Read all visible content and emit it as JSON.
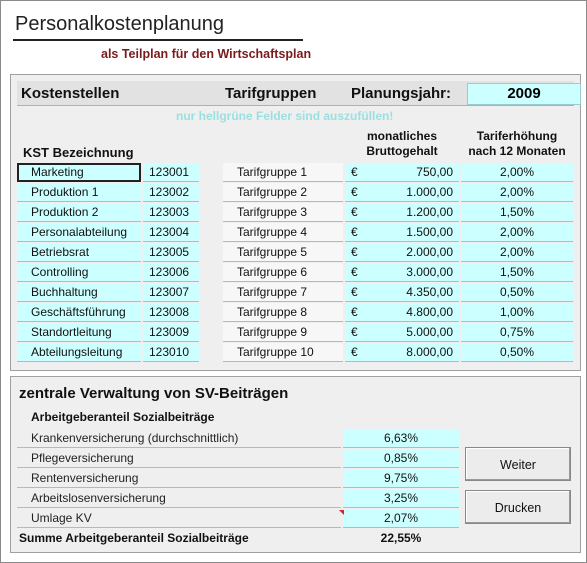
{
  "title": "Personalkostenplanung",
  "subtitle": "als Teilplan für den Wirtschaftsplan",
  "header": {
    "kostenstellen": "Kostenstellen",
    "tarifgruppen": "Tarifgruppen",
    "planungsjahr_label": "Planungsjahr:",
    "planungsjahr_value": "2009"
  },
  "hint": "nur hellgrüne Felder sind auszufüllen!",
  "columns": {
    "kst": "KST Bezeichnung",
    "gehalt_line1": "monatliches",
    "gehalt_line2": "Bruttogehalt",
    "erhoehung_line1": "Tariferhöhung",
    "erhoehung_line2": "nach 12 Monaten"
  },
  "currency_symbol": "€",
  "rows": [
    {
      "kst_name": "Marketing",
      "kst_num": "123001",
      "tarif": "Tarifgruppe 1",
      "gehalt": "750,00",
      "erhoehung": "2,00%"
    },
    {
      "kst_name": "Produktion 1",
      "kst_num": "123002",
      "tarif": "Tarifgruppe 2",
      "gehalt": "1.000,00",
      "erhoehung": "2,00%"
    },
    {
      "kst_name": "Produktion 2",
      "kst_num": "123003",
      "tarif": "Tarifgruppe 3",
      "gehalt": "1.200,00",
      "erhoehung": "1,50%"
    },
    {
      "kst_name": "Personalabteilung",
      "kst_num": "123004",
      "tarif": "Tarifgruppe 4",
      "gehalt": "1.500,00",
      "erhoehung": "2,00%"
    },
    {
      "kst_name": "Betriebsrat",
      "kst_num": "123005",
      "tarif": "Tarifgruppe 5",
      "gehalt": "2.000,00",
      "erhoehung": "2,00%"
    },
    {
      "kst_name": "Controlling",
      "kst_num": "123006",
      "tarif": "Tarifgruppe 6",
      "gehalt": "3.000,00",
      "erhoehung": "1,50%"
    },
    {
      "kst_name": "Buchhaltung",
      "kst_num": "123007",
      "tarif": "Tarifgruppe 7",
      "gehalt": "4.350,00",
      "erhoehung": "0,50%"
    },
    {
      "kst_name": "Geschäftsführung",
      "kst_num": "123008",
      "tarif": "Tarifgruppe 8",
      "gehalt": "4.800,00",
      "erhoehung": "1,00%"
    },
    {
      "kst_name": "Standortleitung",
      "kst_num": "123009",
      "tarif": "Tarifgruppe 9",
      "gehalt": "5.000,00",
      "erhoehung": "0,75%"
    },
    {
      "kst_name": "Abteilungsleitung",
      "kst_num": "123010",
      "tarif": "Tarifgruppe 10",
      "gehalt": "8.000,00",
      "erhoehung": "0,50%"
    }
  ],
  "sv": {
    "title": "zentrale Verwaltung von SV-Beiträgen",
    "subtitle": "Arbeitgeberanteil Sozialbeiträge",
    "items": [
      {
        "label": "Krankenversicherung (durchschnittlich)",
        "value": "6,63%"
      },
      {
        "label": "Pflegeversicherung",
        "value": "0,85%"
      },
      {
        "label": "Rentenversicherung",
        "value": "9,75%"
      },
      {
        "label": "Arbeitslosenversicherung",
        "value": "3,25%"
      },
      {
        "label": "Umlage KV",
        "value": "2,07%"
      }
    ],
    "sum_label": "Summe Arbeitgeberanteil Sozialbeiträge",
    "sum_value": "22,55%"
  },
  "buttons": {
    "weiter": "Weiter",
    "drucken": "Drucken"
  },
  "colors": {
    "input_fill": "#ccffff",
    "subtitle": "#7a1a1a",
    "hint": "#9be0e0"
  }
}
